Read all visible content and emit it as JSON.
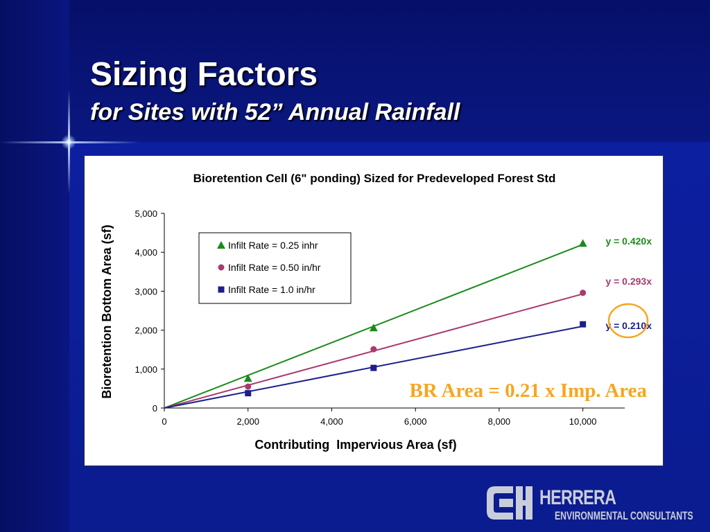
{
  "slide": {
    "title": "Sizing Factors",
    "subtitle": "for Sites with 52” Annual Rainfall",
    "annotation": "BR Area = 0.21 x Imp. Area",
    "colors": {
      "background": "#0b1c8f",
      "annotation": "#f5a623",
      "circle": "#f5a623"
    }
  },
  "logo": {
    "name": "HERRERA",
    "subtitle": "ENVIRONMENTAL CONSULTANTS"
  },
  "chart_data": {
    "type": "scatter",
    "title": "Bioretention Cell (6\" ponding) Sized for Predeveloped Forest Std",
    "xlabel": "Contributing  Impervious Area (sf)",
    "ylabel": "Bioretention Bottom Area (sf)",
    "xlim": [
      0,
      11000
    ],
    "ylim": [
      0,
      5000
    ],
    "xticks": [
      0,
      2000,
      4000,
      6000,
      8000,
      10000
    ],
    "xtick_labels": [
      "0",
      "2,000",
      "4,000",
      "6,000",
      "8,000",
      "10,000"
    ],
    "yticks": [
      0,
      1000,
      2000,
      3000,
      4000,
      5000
    ],
    "ytick_labels": [
      "0",
      "1,000",
      "2,000",
      "3,000",
      "4,000",
      "5,000"
    ],
    "grid": false,
    "legend_position": "top-left",
    "series": [
      {
        "name": "Infilt Rate = 0.25 inhr",
        "marker": "triangle",
        "color": "#1a8a1a",
        "x": [
          2000,
          5000,
          10000
        ],
        "y": [
          760,
          2060,
          4230
        ],
        "trendline_slope": 0.42,
        "equation": "y = 0.420x"
      },
      {
        "name": "Infilt Rate = 0.50 in/hr",
        "marker": "circle",
        "color": "#a83a6e",
        "x": [
          2000,
          5000,
          10000
        ],
        "y": [
          550,
          1510,
          2960
        ],
        "trendline_slope": 0.293,
        "equation": "y = 0.293x"
      },
      {
        "name": "Infilt Rate = 1.0 in/hr",
        "marker": "square",
        "color": "#1a1f8a",
        "x": [
          2000,
          5000,
          10000
        ],
        "y": [
          380,
          1030,
          2150
        ],
        "trendline_slope": 0.21,
        "equation": "y = 0.210x"
      }
    ]
  }
}
